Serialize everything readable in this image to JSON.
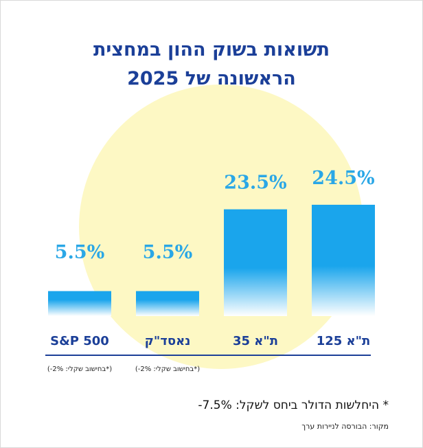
{
  "title_lines": [
    "תשואות בשוק ההון במחצית",
    "הראשונה של 2025"
  ],
  "colors": {
    "title": "#1b3f98",
    "value_label": "#2aa7e6",
    "bar_top": "#1aa5ec",
    "bar_bottom": "#ffffff",
    "category_label": "#1b3f98",
    "axis_line": "#1b3f98",
    "circle": "#fdf8c4"
  },
  "chart_data": {
    "type": "bar",
    "categories": [
      "S&P 500",
      "נאסד\"ק",
      "ת\"א 35",
      "ת\"א 125"
    ],
    "values": [
      5.5,
      5.5,
      23.5,
      24.5
    ],
    "value_labels": [
      "5.5%",
      "5.5%",
      "23.5%",
      "24.5%"
    ],
    "notes": [
      "(*בחישוב שקלי: 2%-)",
      "(*בחישוב שקלי: 2%-)",
      "",
      ""
    ],
    "ylim": [
      0,
      26
    ],
    "xlabel": "",
    "ylabel": "",
    "grid": false
  },
  "footnote": "* היחלשות הדולר ביחס לשקל: 7.5%-",
  "source": "מקור: הבורסה לניירות ערך"
}
